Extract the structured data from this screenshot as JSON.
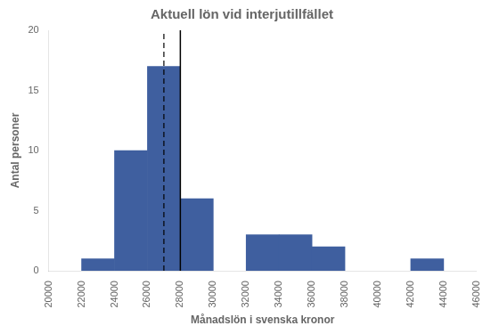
{
  "chart_data": {
    "type": "histogram",
    "title": "Aktuell lön vid interjutillfället",
    "xlabel": "Månadslön i svenska kronor",
    "ylabel": "Antal personer",
    "bins": [
      20000,
      22000,
      24000,
      26000,
      28000,
      30000,
      32000,
      34000,
      36000,
      38000,
      40000,
      42000,
      44000,
      46000
    ],
    "values": [
      0,
      1,
      10,
      17,
      6,
      0,
      3,
      3,
      2,
      0,
      0,
      1,
      0
    ],
    "color": "#3F5F9F",
    "vlines": [
      {
        "x": 27000,
        "line_style": "dashed",
        "color": "#000000"
      },
      {
        "x": 28000,
        "line_style": "solid",
        "color": "#000000"
      }
    ],
    "xlim": [
      20000,
      46000
    ],
    "xticks": [
      20000,
      22000,
      24000,
      26000,
      28000,
      30000,
      32000,
      34000,
      36000,
      38000,
      40000,
      42000,
      44000,
      46000
    ],
    "ylim": [
      0,
      20
    ],
    "yticks": [
      0,
      5,
      10,
      15,
      20
    ],
    "grid": false
  }
}
